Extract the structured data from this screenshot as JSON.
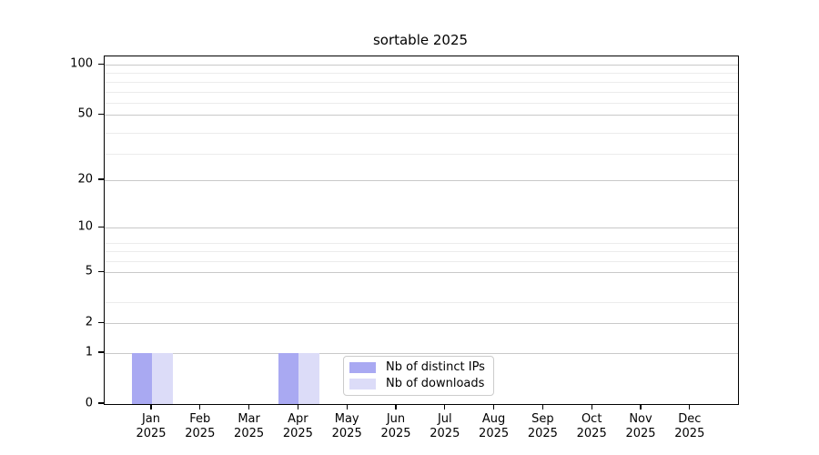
{
  "chart_data": {
    "type": "bar",
    "title": "sortable 2025",
    "categories": [
      "Jan",
      "Feb",
      "Mar",
      "Apr",
      "May",
      "Jun",
      "Jul",
      "Aug",
      "Sep",
      "Oct",
      "Nov",
      "Dec"
    ],
    "year_label": "2025",
    "series": [
      {
        "name": "Nb of distinct IPs",
        "color": "#a9a9f2",
        "values": [
          1,
          0,
          0,
          1,
          0,
          0,
          0,
          0,
          0,
          0,
          0,
          0
        ]
      },
      {
        "name": "Nb of downloads",
        "color": "#dcdcf8",
        "values": [
          1,
          0,
          0,
          1,
          0,
          0,
          0,
          0,
          0,
          0,
          0,
          0
        ]
      }
    ],
    "yscale": "log1p",
    "ylim": [
      0,
      112
    ],
    "y_ticks": [
      0,
      1,
      2,
      5,
      10,
      20,
      50,
      100
    ],
    "y_minor_grid_log_positions": [
      4,
      7,
      8,
      9,
      30,
      40,
      60,
      70,
      80,
      90
    ],
    "grid": true,
    "legend_position": "lower center"
  },
  "colors": {
    "grid_major": "#c9c9c9",
    "grid_minor": "#ececec",
    "spine": "#000000",
    "legend_border": "#cccccc"
  }
}
